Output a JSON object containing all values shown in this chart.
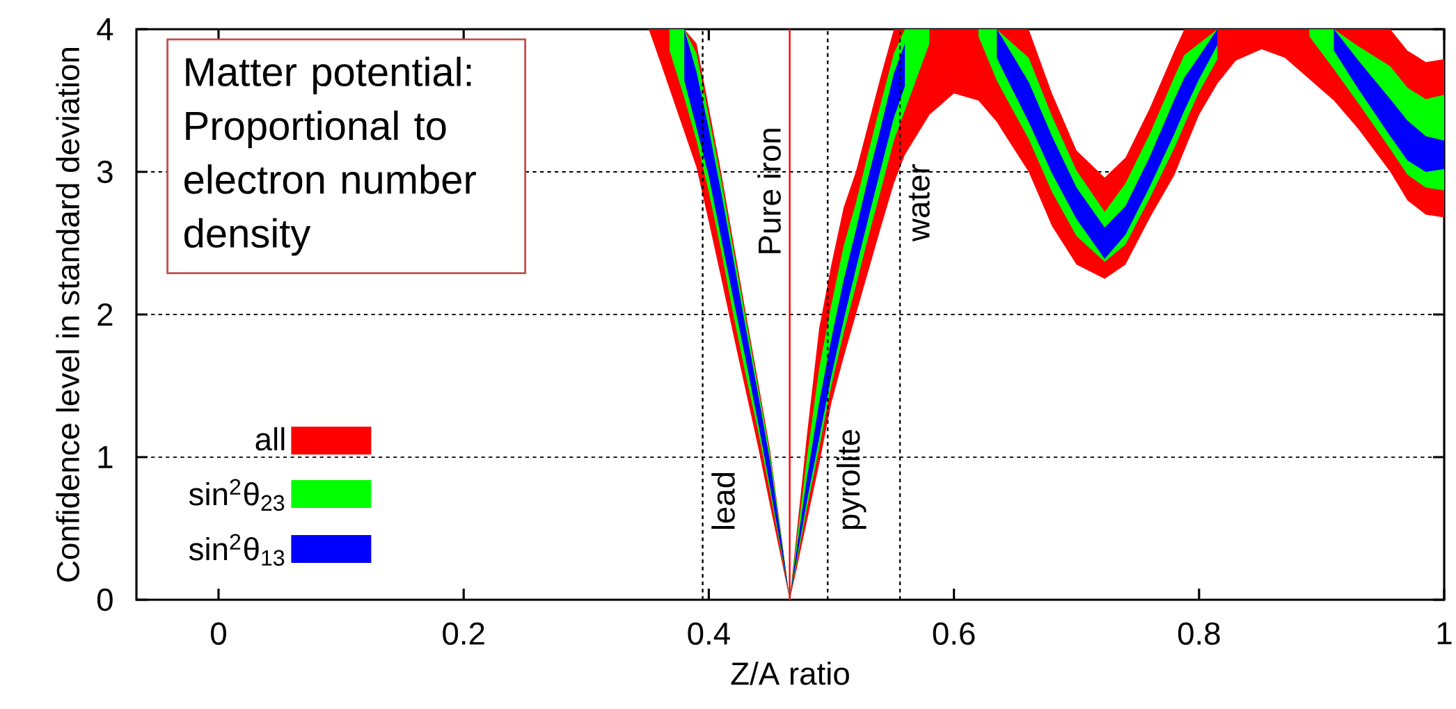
{
  "chart_data": {
    "type": "line",
    "xlabel": "Z/A ratio",
    "ylabel": "Confidence level in standard deviation",
    "annotations": [
      "Matter potential: Proportional to electron number density"
    ],
    "x": [
      0.351,
      0.362,
      0.368,
      0.38,
      0.39,
      0.4,
      0.41,
      0.42,
      0.43,
      0.44,
      0.45,
      0.46,
      0.466,
      0.47,
      0.48,
      0.49,
      0.5,
      0.51,
      0.52,
      0.53,
      0.54,
      0.551,
      0.56,
      0.58,
      0.6,
      0.62,
      0.635,
      0.64,
      0.661,
      0.68,
      0.7,
      0.723,
      0.74,
      0.76,
      0.78,
      0.788,
      0.8,
      0.815,
      0.83,
      0.851,
      0.87,
      0.89,
      0.91,
      0.93,
      0.956,
      0.97,
      0.985,
      1.0
    ],
    "series": [
      {
        "name": "all",
        "color": "#ff0000",
        "values": [
          null,
          null,
          null,
          null,
          null,
          null,
          null,
          null,
          null,
          null,
          null,
          null,
          null,
          null,
          null,
          null,
          null,
          null,
          null,
          null,
          null,
          null,
          null,
          null,
          null,
          null,
          null,
          null,
          null,
          null,
          null,
          null,
          null,
          null,
          null,
          null,
          null,
          null,
          null,
          null,
          null,
          null,
          null,
          null,
          null,
          null,
          null,
          null
        ],
        "lower": [
          4,
          3.73,
          3.58,
          3.28,
          3.03,
          2.65,
          2.26,
          1.86,
          1.47,
          1.08,
          0.66,
          0.25,
          0,
          0.15,
          0.55,
          0.95,
          1.38,
          1.7,
          2.0,
          2.3,
          2.6,
          2.92,
          3.12,
          3.4,
          3.55,
          3.5,
          3.35,
          3.28,
          3.0,
          2.62,
          2.35,
          2.25,
          2.35,
          2.68,
          2.98,
          3.15,
          3.4,
          3.62,
          3.78,
          3.86,
          3.8,
          3.65,
          3.5,
          3.3,
          3.0,
          2.8,
          2.7,
          2.68
        ],
        "upper": [
          4,
          4,
          4,
          4,
          3.9,
          3.45,
          3.0,
          2.51,
          2.02,
          1.54,
          1.05,
          0.4,
          0,
          0.33,
          1.15,
          1.9,
          2.35,
          2.75,
          3.0,
          3.33,
          3.66,
          4,
          4,
          4,
          4,
          4,
          4,
          4,
          4,
          3.55,
          3.15,
          2.96,
          3.1,
          3.45,
          3.85,
          4,
          4,
          4,
          4,
          4,
          4,
          4,
          4,
          4,
          4,
          3.85,
          3.77,
          3.79
        ]
      },
      {
        "name": "sin$^{2}$θ$_{23}$",
        "color": "#00ff00",
        "values": [
          null,
          null,
          null,
          null,
          null,
          null,
          null,
          null,
          null,
          null,
          null,
          null,
          null,
          null,
          null,
          null,
          null,
          null,
          null,
          null,
          null,
          null,
          null,
          null,
          null,
          null,
          null,
          null,
          null,
          null,
          null,
          null,
          null,
          null,
          null,
          null,
          null,
          null,
          null,
          null,
          null,
          null,
          null,
          null,
          null,
          null,
          null,
          null
        ],
        "lower": [
          null,
          null,
          3.85,
          3.52,
          3.22,
          2.86,
          2.45,
          2.0,
          1.58,
          1.19,
          0.75,
          0.29,
          0,
          0.18,
          0.64,
          1.06,
          1.5,
          1.87,
          2.2,
          2.54,
          2.86,
          3.22,
          3.43,
          3.9,
          null,
          3.95,
          3.64,
          3.56,
          3.23,
          2.86,
          2.55,
          2.37,
          2.49,
          2.82,
          3.17,
          3.33,
          3.56,
          3.79,
          null,
          null,
          null,
          3.95,
          3.72,
          3.48,
          3.16,
          2.98,
          2.89,
          2.87
        ],
        "upper": [
          null,
          null,
          4,
          4,
          3.83,
          3.39,
          2.95,
          2.46,
          1.98,
          1.5,
          1.02,
          0.39,
          0,
          0.29,
          0.99,
          1.62,
          2.07,
          2.48,
          2.78,
          3.13,
          3.47,
          3.83,
          4,
          4,
          null,
          4,
          4,
          3.96,
          3.8,
          3.39,
          3.01,
          2.72,
          2.92,
          3.27,
          3.67,
          3.82,
          3.9,
          4,
          null,
          null,
          null,
          4,
          4,
          3.88,
          3.74,
          3.59,
          3.51,
          3.54
        ]
      },
      {
        "name": "sin$^{2}$θ$_{13}$",
        "color": "#0000ff",
        "values": [
          null,
          null,
          null,
          null,
          null,
          null,
          null,
          null,
          null,
          null,
          null,
          null,
          null,
          null,
          null,
          null,
          null,
          null,
          null,
          null,
          null,
          null,
          null,
          null,
          null,
          null,
          null,
          null,
          null,
          null,
          null,
          null,
          null,
          null,
          null,
          null,
          null,
          null,
          null,
          null,
          null,
          null,
          null,
          null,
          null,
          null,
          null,
          null
        ],
        "lower": [
          null,
          null,
          null,
          3.64,
          3.31,
          2.97,
          2.54,
          2.11,
          1.69,
          1.25,
          0.79,
          0.31,
          0,
          0.2,
          0.69,
          1.13,
          1.57,
          1.96,
          2.32,
          2.67,
          3.01,
          3.38,
          3.6,
          null,
          null,
          null,
          3.8,
          3.71,
          3.35,
          2.99,
          2.67,
          2.39,
          2.56,
          2.9,
          3.27,
          3.43,
          3.65,
          3.89,
          null,
          null,
          null,
          null,
          3.85,
          3.58,
          3.25,
          3.08,
          3.0,
          3.02
        ],
        "upper": [
          null,
          null,
          null,
          4,
          3.7,
          3.3,
          2.86,
          2.39,
          1.91,
          1.45,
          0.97,
          0.37,
          0,
          0.25,
          0.85,
          1.38,
          1.83,
          2.24,
          2.59,
          2.96,
          3.3,
          3.69,
          3.9,
          null,
          null,
          null,
          4,
          3.93,
          3.63,
          3.25,
          2.89,
          2.61,
          2.76,
          3.11,
          3.51,
          3.66,
          3.81,
          4,
          null,
          null,
          null,
          null,
          4,
          3.78,
          3.51,
          3.36,
          3.25,
          3.22
        ]
      }
    ],
    "ref_lines": [
      {
        "axis": "x",
        "value": 0.395,
        "label": "lead",
        "color": "#000000",
        "line_style": "dotted"
      },
      {
        "axis": "x",
        "value": 0.466,
        "label": "Pure iron",
        "color": "#ff0000",
        "line_style": "solid"
      },
      {
        "axis": "x",
        "value": 0.497,
        "label": "pyrolite",
        "color": "#000000",
        "line_style": "dotted"
      },
      {
        "axis": "x",
        "value": 0.556,
        "label": "water",
        "color": "#000000",
        "line_style": "dotted"
      }
    ],
    "xlim": [
      -0.067,
      1.0
    ],
    "ylim": [
      0,
      4
    ],
    "xticks": [
      0,
      0.2,
      0.4,
      0.6,
      0.8,
      1
    ],
    "yticks": [
      0,
      1,
      2,
      3,
      4
    ],
    "grid": "y",
    "legend": "bottom left"
  }
}
